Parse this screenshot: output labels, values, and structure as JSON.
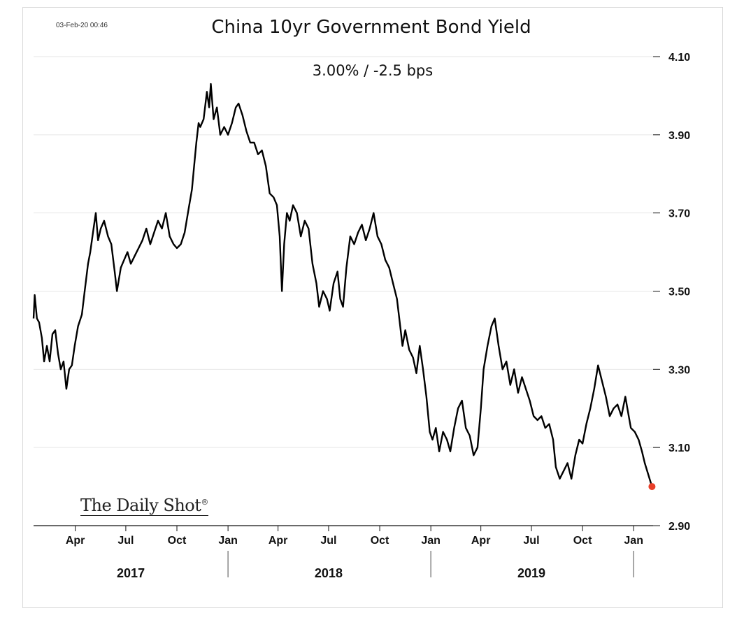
{
  "header": {
    "timestamp": "03-Feb-20 00:46",
    "title": "China 10yr Government Bond Yield",
    "subtitle": "3.00%  /  -2.5 bps"
  },
  "watermark": "The Daily Shot",
  "colors": {
    "line": "#000000",
    "last_point": "#e8402a",
    "grid": "#e6e6e6"
  },
  "chart_data": {
    "type": "line",
    "title": "China 10yr Government Bond Yield",
    "subtitle": "3.00%  /  -2.5 bps",
    "ylim": [
      2.9,
      4.1
    ],
    "yticks": [
      4.1,
      3.9,
      3.7,
      3.5,
      3.3,
      3.1,
      2.9
    ],
    "ytick_labels": [
      "4.10",
      "3.90",
      "3.70",
      "3.50",
      "3.30",
      "3.10",
      "2.90"
    ],
    "xlim": [
      "2017-01-16",
      "2020-02-05"
    ],
    "xticks": [
      {
        "date": "2017-04-01",
        "label": "Apr"
      },
      {
        "date": "2017-07-01",
        "label": "Jul"
      },
      {
        "date": "2017-10-01",
        "label": "Oct"
      },
      {
        "date": "2018-01-01",
        "label": "Jan"
      },
      {
        "date": "2018-04-01",
        "label": "Apr"
      },
      {
        "date": "2018-07-01",
        "label": "Jul"
      },
      {
        "date": "2018-10-01",
        "label": "Oct"
      },
      {
        "date": "2019-01-01",
        "label": "Jan"
      },
      {
        "date": "2019-04-01",
        "label": "Apr"
      },
      {
        "date": "2019-07-01",
        "label": "Jul"
      },
      {
        "date": "2019-10-01",
        "label": "Oct"
      },
      {
        "date": "2020-01-01",
        "label": "Jan"
      }
    ],
    "years": [
      {
        "label": "2017",
        "center": "2017-07-10"
      },
      {
        "label": "2018",
        "center": "2018-07-01"
      },
      {
        "label": "2019",
        "center": "2019-07-01"
      }
    ],
    "year_separators": [
      "2018-01-01",
      "2019-01-01",
      "2020-01-01"
    ],
    "grid": true,
    "series": [
      {
        "name": "",
        "points": [
          [
            "2017-01-16",
            3.43
          ],
          [
            "2017-01-18",
            3.49
          ],
          [
            "2017-01-22",
            3.43
          ],
          [
            "2017-01-26",
            3.42
          ],
          [
            "2017-01-31",
            3.38
          ],
          [
            "2017-02-04",
            3.32
          ],
          [
            "2017-02-09",
            3.36
          ],
          [
            "2017-02-14",
            3.32
          ],
          [
            "2017-02-19",
            3.39
          ],
          [
            "2017-02-24",
            3.4
          ],
          [
            "2017-03-01",
            3.34
          ],
          [
            "2017-03-06",
            3.3
          ],
          [
            "2017-03-11",
            3.32
          ],
          [
            "2017-03-16",
            3.25
          ],
          [
            "2017-03-21",
            3.3
          ],
          [
            "2017-03-26",
            3.31
          ],
          [
            "2017-03-31",
            3.36
          ],
          [
            "2017-04-06",
            3.41
          ],
          [
            "2017-04-13",
            3.44
          ],
          [
            "2017-04-18",
            3.5
          ],
          [
            "2017-04-24",
            3.57
          ],
          [
            "2017-04-28",
            3.6
          ],
          [
            "2017-05-03",
            3.65
          ],
          [
            "2017-05-08",
            3.7
          ],
          [
            "2017-05-12",
            3.63
          ],
          [
            "2017-05-17",
            3.66
          ],
          [
            "2017-05-23",
            3.68
          ],
          [
            "2017-05-30",
            3.64
          ],
          [
            "2017-06-05",
            3.62
          ],
          [
            "2017-06-11",
            3.55
          ],
          [
            "2017-06-15",
            3.5
          ],
          [
            "2017-06-22",
            3.56
          ],
          [
            "2017-06-28",
            3.58
          ],
          [
            "2017-07-04",
            3.6
          ],
          [
            "2017-07-10",
            3.57
          ],
          [
            "2017-07-17",
            3.59
          ],
          [
            "2017-07-24",
            3.61
          ],
          [
            "2017-07-31",
            3.63
          ],
          [
            "2017-08-07",
            3.66
          ],
          [
            "2017-08-14",
            3.62
          ],
          [
            "2017-08-21",
            3.65
          ],
          [
            "2017-08-28",
            3.68
          ],
          [
            "2017-09-04",
            3.66
          ],
          [
            "2017-09-11",
            3.7
          ],
          [
            "2017-09-18",
            3.64
          ],
          [
            "2017-09-25",
            3.62
          ],
          [
            "2017-10-01",
            3.61
          ],
          [
            "2017-10-08",
            3.62
          ],
          [
            "2017-10-15",
            3.65
          ],
          [
            "2017-10-22",
            3.71
          ],
          [
            "2017-10-28",
            3.76
          ],
          [
            "2017-11-01",
            3.82
          ],
          [
            "2017-11-05",
            3.88
          ],
          [
            "2017-11-09",
            3.93
          ],
          [
            "2017-11-12",
            3.92
          ],
          [
            "2017-11-18",
            3.94
          ],
          [
            "2017-11-24",
            4.01
          ],
          [
            "2017-11-28",
            3.97
          ],
          [
            "2017-12-01",
            4.03
          ],
          [
            "2017-12-06",
            3.94
          ],
          [
            "2017-12-12",
            3.97
          ],
          [
            "2017-12-18",
            3.9
          ],
          [
            "2017-12-25",
            3.92
          ],
          [
            "2018-01-01",
            3.9
          ],
          [
            "2018-01-08",
            3.93
          ],
          [
            "2018-01-15",
            3.97
          ],
          [
            "2018-01-20",
            3.98
          ],
          [
            "2018-01-27",
            3.95
          ],
          [
            "2018-02-03",
            3.91
          ],
          [
            "2018-02-10",
            3.88
          ],
          [
            "2018-02-17",
            3.88
          ],
          [
            "2018-02-24",
            3.85
          ],
          [
            "2018-03-03",
            3.86
          ],
          [
            "2018-03-10",
            3.82
          ],
          [
            "2018-03-17",
            3.75
          ],
          [
            "2018-03-24",
            3.74
          ],
          [
            "2018-03-30",
            3.72
          ],
          [
            "2018-04-04",
            3.64
          ],
          [
            "2018-04-08",
            3.5
          ],
          [
            "2018-04-12",
            3.62
          ],
          [
            "2018-04-17",
            3.7
          ],
          [
            "2018-04-22",
            3.68
          ],
          [
            "2018-04-28",
            3.72
          ],
          [
            "2018-05-05",
            3.7
          ],
          [
            "2018-05-12",
            3.64
          ],
          [
            "2018-05-19",
            3.68
          ],
          [
            "2018-05-26",
            3.66
          ],
          [
            "2018-06-02",
            3.57
          ],
          [
            "2018-06-09",
            3.52
          ],
          [
            "2018-06-14",
            3.46
          ],
          [
            "2018-06-21",
            3.5
          ],
          [
            "2018-06-28",
            3.48
          ],
          [
            "2018-07-03",
            3.45
          ],
          [
            "2018-07-10",
            3.52
          ],
          [
            "2018-07-17",
            3.55
          ],
          [
            "2018-07-22",
            3.48
          ],
          [
            "2018-07-27",
            3.46
          ],
          [
            "2018-08-02",
            3.56
          ],
          [
            "2018-08-09",
            3.64
          ],
          [
            "2018-08-16",
            3.62
          ],
          [
            "2018-08-23",
            3.65
          ],
          [
            "2018-08-30",
            3.67
          ],
          [
            "2018-09-06",
            3.63
          ],
          [
            "2018-09-13",
            3.66
          ],
          [
            "2018-09-20",
            3.7
          ],
          [
            "2018-09-27",
            3.64
          ],
          [
            "2018-10-04",
            3.62
          ],
          [
            "2018-10-11",
            3.58
          ],
          [
            "2018-10-18",
            3.56
          ],
          [
            "2018-10-25",
            3.52
          ],
          [
            "2018-11-01",
            3.48
          ],
          [
            "2018-11-06",
            3.42
          ],
          [
            "2018-11-11",
            3.36
          ],
          [
            "2018-11-16",
            3.4
          ],
          [
            "2018-11-23",
            3.35
          ],
          [
            "2018-11-30",
            3.33
          ],
          [
            "2018-12-06",
            3.29
          ],
          [
            "2018-12-12",
            3.36
          ],
          [
            "2018-12-18",
            3.3
          ],
          [
            "2018-12-24",
            3.23
          ],
          [
            "2018-12-30",
            3.14
          ],
          [
            "2019-01-04",
            3.12
          ],
          [
            "2019-01-10",
            3.15
          ],
          [
            "2019-01-16",
            3.09
          ],
          [
            "2019-01-23",
            3.14
          ],
          [
            "2019-01-30",
            3.12
          ],
          [
            "2019-02-05",
            3.09
          ],
          [
            "2019-02-12",
            3.15
          ],
          [
            "2019-02-19",
            3.2
          ],
          [
            "2019-02-26",
            3.22
          ],
          [
            "2019-03-05",
            3.15
          ],
          [
            "2019-03-12",
            3.13
          ],
          [
            "2019-03-19",
            3.08
          ],
          [
            "2019-03-26",
            3.1
          ],
          [
            "2019-04-01",
            3.2
          ],
          [
            "2019-04-06",
            3.3
          ],
          [
            "2019-04-13",
            3.36
          ],
          [
            "2019-04-20",
            3.41
          ],
          [
            "2019-04-26",
            3.43
          ],
          [
            "2019-05-03",
            3.36
          ],
          [
            "2019-05-10",
            3.3
          ],
          [
            "2019-05-17",
            3.32
          ],
          [
            "2019-05-24",
            3.26
          ],
          [
            "2019-05-31",
            3.3
          ],
          [
            "2019-06-07",
            3.24
          ],
          [
            "2019-06-14",
            3.28
          ],
          [
            "2019-06-21",
            3.25
          ],
          [
            "2019-06-28",
            3.22
          ],
          [
            "2019-07-05",
            3.18
          ],
          [
            "2019-07-12",
            3.17
          ],
          [
            "2019-07-19",
            3.18
          ],
          [
            "2019-07-26",
            3.15
          ],
          [
            "2019-08-02",
            3.16
          ],
          [
            "2019-08-09",
            3.12
          ],
          [
            "2019-08-14",
            3.05
          ],
          [
            "2019-08-21",
            3.02
          ],
          [
            "2019-08-28",
            3.04
          ],
          [
            "2019-09-04",
            3.06
          ],
          [
            "2019-09-11",
            3.02
          ],
          [
            "2019-09-18",
            3.08
          ],
          [
            "2019-09-25",
            3.12
          ],
          [
            "2019-10-01",
            3.11
          ],
          [
            "2019-10-08",
            3.16
          ],
          [
            "2019-10-15",
            3.2
          ],
          [
            "2019-10-22",
            3.25
          ],
          [
            "2019-10-29",
            3.31
          ],
          [
            "2019-11-05",
            3.27
          ],
          [
            "2019-11-12",
            3.23
          ],
          [
            "2019-11-19",
            3.18
          ],
          [
            "2019-11-26",
            3.2
          ],
          [
            "2019-12-03",
            3.21
          ],
          [
            "2019-12-10",
            3.18
          ],
          [
            "2019-12-17",
            3.23
          ],
          [
            "2019-12-22",
            3.19
          ],
          [
            "2019-12-27",
            3.15
          ],
          [
            "2020-01-03",
            3.14
          ],
          [
            "2020-01-10",
            3.12
          ],
          [
            "2020-01-16",
            3.09
          ],
          [
            "2020-01-21",
            3.06
          ],
          [
            "2020-02-03",
            3.0
          ]
        ]
      }
    ],
    "last_point": {
      "date": "2020-02-03",
      "value": 3.0
    }
  }
}
